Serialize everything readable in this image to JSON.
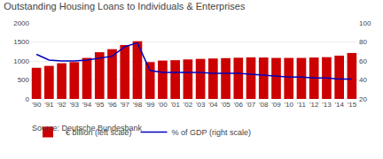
{
  "chart_data": {
    "type": "bar",
    "title": "Outstanding Housing Loans to Individuals & Enterprises",
    "annotations": [
      "Source: Deutsche Bundesbank"
    ],
    "categories": [
      "'90",
      "'91",
      "'92",
      "'93",
      "'94",
      "'95",
      "'96",
      "'97",
      "'98",
      "'99",
      "'00",
      "'01",
      "'02",
      "'03",
      "'04",
      "'05",
      "'06",
      "'07",
      "'08",
      "'09",
      "'10",
      "'11",
      "'12",
      "'13",
      "'14",
      "'15"
    ],
    "series": [
      {
        "name": "€ billion (left scale)",
        "type": "bar",
        "color": "#cc0000",
        "values": [
          820,
          870,
          940,
          970,
          1080,
          1230,
          1310,
          1420,
          1520,
          970,
          1010,
          1020,
          1040,
          1055,
          1065,
          1075,
          1085,
          1095,
          1090,
          1080,
          1080,
          1080,
          1090,
          1100,
          1140,
          1210
        ]
      },
      {
        "name": "% of GDP (right scale)",
        "type": "line",
        "color": "#0000bb",
        "axis": "y2",
        "values": [
          67,
          61,
          60,
          60,
          61,
          63,
          65,
          75,
          79,
          50,
          48,
          48,
          48,
          48,
          47,
          47,
          47,
          46,
          45,
          44,
          43,
          43,
          42,
          42,
          41,
          41
        ]
      }
    ],
    "ylim": [
      0,
      2000
    ],
    "yticks": [
      0,
      500,
      1000,
      1500,
      2000
    ],
    "y2lim": [
      20,
      100
    ],
    "y2ticks": [
      20,
      40,
      60,
      80,
      100
    ],
    "grid": true,
    "legend": "lower left"
  }
}
